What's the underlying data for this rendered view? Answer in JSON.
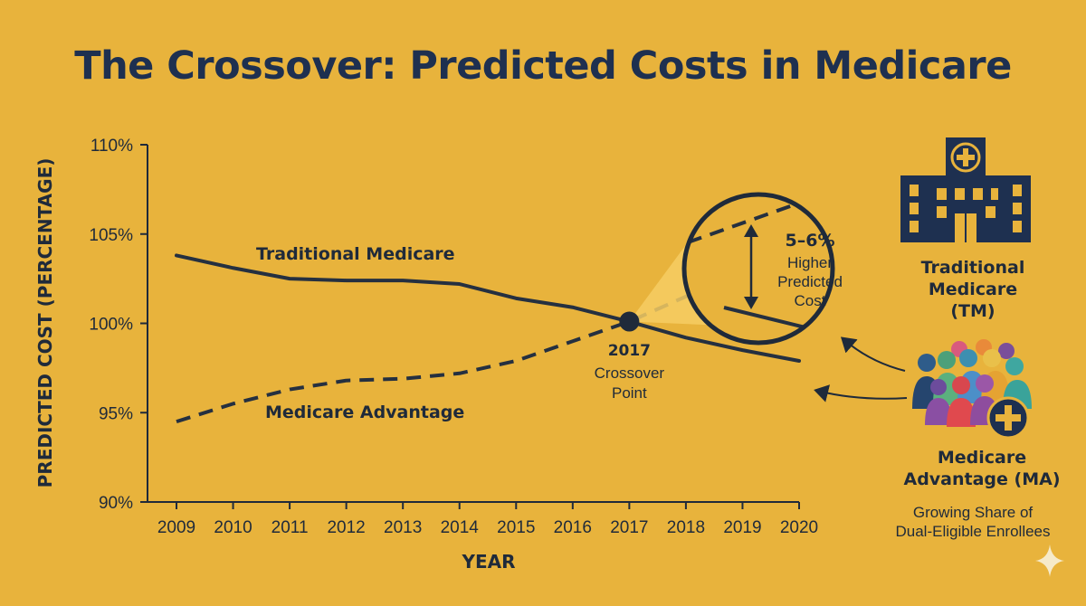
{
  "title": "The Crossover: Predicted Costs in Medicare",
  "chart_data": {
    "type": "line",
    "title": "The Crossover: Predicted Costs in Medicare",
    "xlabel": "YEAR",
    "ylabel": "PREDICTED COST (PERCENTAGE)",
    "x": [
      2009,
      2010,
      2011,
      2012,
      2013,
      2014,
      2015,
      2016,
      2017,
      2018,
      2019,
      2020
    ],
    "x_tick_labels": [
      "2009",
      "2010",
      "2011",
      "2012",
      "2013",
      "2014",
      "2015",
      "2016",
      "2017",
      "2018",
      "2019",
      "2020"
    ],
    "ylim": [
      90,
      110
    ],
    "y_ticks": [
      90,
      95,
      100,
      105,
      110
    ],
    "y_tick_labels": [
      "90%",
      "95%",
      "100%",
      "105%",
      "110%"
    ],
    "grid": false,
    "series": [
      {
        "name": "Traditional Medicare",
        "style": "solid",
        "color": "#253040",
        "values": [
          103.8,
          103.1,
          102.5,
          102.4,
          102.4,
          102.2,
          101.4,
          100.9,
          100.1,
          99.2,
          98.5,
          97.9
        ]
      },
      {
        "name": "Medicare Advantage",
        "style": "dashed",
        "color": "#253040",
        "values": [
          94.5,
          95.5,
          96.3,
          96.8,
          96.9,
          97.2,
          97.9,
          99.0,
          100.1,
          101.5,
          103.2,
          104.8
        ]
      }
    ],
    "annotations": {
      "crossover": {
        "x": 2017,
        "y": 100.1,
        "year_label": "2017",
        "lines": [
          "Crossover",
          "Point"
        ]
      },
      "magnifier": {
        "lines": [
          "5–6%",
          "Higher",
          "Predicted",
          "Cost"
        ]
      }
    }
  },
  "side": {
    "tm_label": [
      "Traditional",
      "Medicare (TM)"
    ],
    "ma_label": [
      "Medicare",
      "Advantage (MA)"
    ],
    "ma_sub": [
      "Growing Share of",
      "Dual-Eligible Enrollees"
    ]
  },
  "colors": {
    "background": "#E8B33C",
    "ink": "#1F2A3A",
    "title": "#1E3050",
    "building": "#1E3050",
    "highlight": "#F6CD63"
  },
  "icons": [
    "hospital-icon",
    "people-group-icon",
    "plus-badge-icon",
    "sparkle-icon"
  ]
}
